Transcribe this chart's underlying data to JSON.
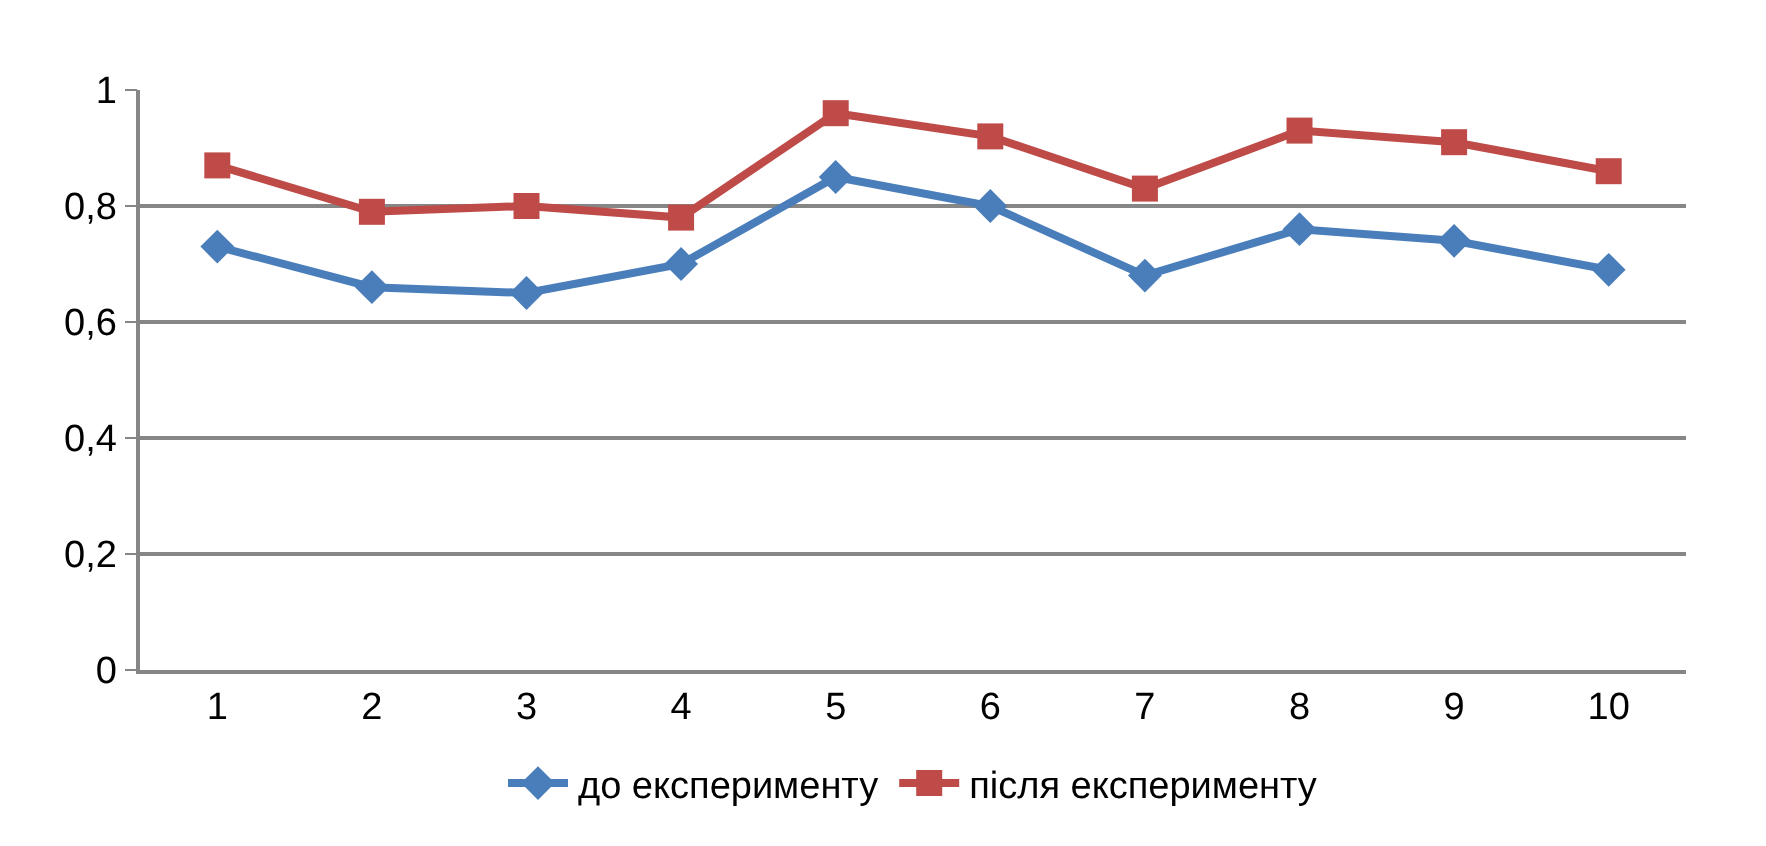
{
  "chart_data": {
    "type": "line",
    "categories": [
      "1",
      "2",
      "3",
      "4",
      "5",
      "6",
      "7",
      "8",
      "9",
      "10"
    ],
    "series": [
      {
        "name": "до експерименту",
        "color": "#4a7ebb",
        "marker": "diamond",
        "values": [
          0.73,
          0.66,
          0.65,
          0.7,
          0.85,
          0.8,
          0.68,
          0.76,
          0.74,
          0.69
        ]
      },
      {
        "name": "після експерименту",
        "color": "#be4b48",
        "marker": "square",
        "values": [
          0.87,
          0.79,
          0.8,
          0.78,
          0.96,
          0.92,
          0.83,
          0.93,
          0.91,
          0.86
        ]
      }
    ],
    "ylim": [
      0,
      1
    ],
    "yticks": [
      0,
      {
        "value": 0.2,
        "label": "0,2"
      },
      {
        "value": 0.4,
        "label": "0,4"
      },
      {
        "value": 0.6,
        "label": "0,6"
      },
      {
        "value": 0.8,
        "label": "0,8"
      },
      1
    ],
    "grid": "y",
    "legend": "bottom",
    "line_style": "solid"
  }
}
